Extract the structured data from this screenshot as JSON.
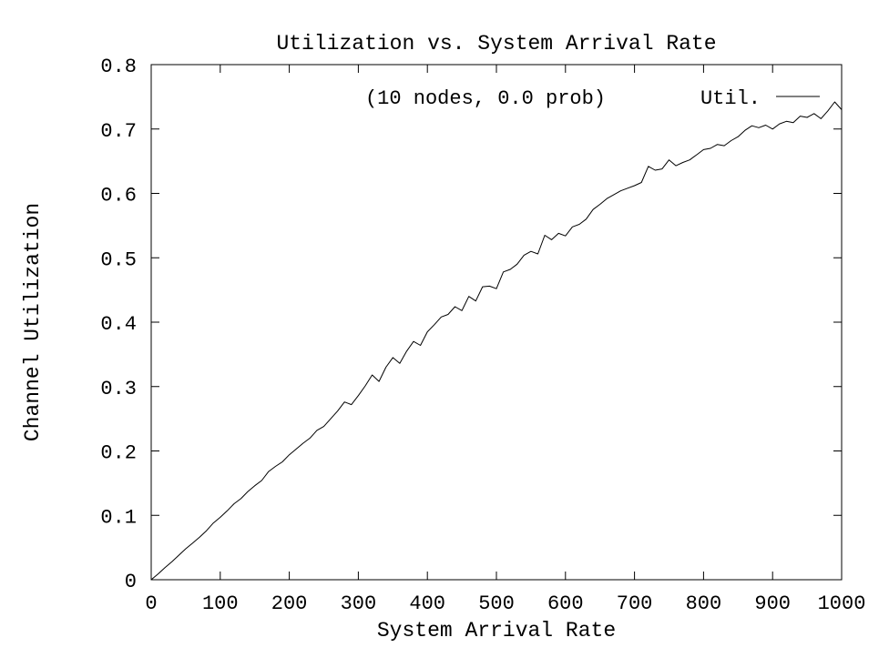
{
  "chart_data": {
    "type": "line",
    "title": "Utilization vs. System Arrival Rate",
    "subtitle": "(10 nodes, 0.0 prob)",
    "xlabel": "System Arrival Rate",
    "ylabel": "Channel Utilization",
    "xlim": [
      0,
      1000
    ],
    "ylim": [
      0,
      0.8
    ],
    "xticks": [
      0,
      100,
      200,
      300,
      400,
      500,
      600,
      700,
      800,
      900,
      1000
    ],
    "yticks": [
      0,
      0.1,
      0.2,
      0.3,
      0.4,
      0.5,
      0.6,
      0.7,
      0.8
    ],
    "ytick_labels": [
      "0",
      "0.1",
      "0.2",
      "0.3",
      "0.4",
      "0.5",
      "0.6",
      "0.7",
      "0.8"
    ],
    "grid": false,
    "legend_position": "top-right",
    "series": [
      {
        "name": "Util.",
        "color": "#000000",
        "x": [
          0,
          10,
          20,
          30,
          40,
          50,
          60,
          70,
          80,
          90,
          100,
          110,
          120,
          130,
          140,
          150,
          160,
          170,
          180,
          190,
          200,
          210,
          220,
          230,
          240,
          250,
          260,
          270,
          280,
          290,
          300,
          310,
          320,
          330,
          340,
          350,
          360,
          370,
          380,
          390,
          400,
          410,
          420,
          430,
          440,
          450,
          460,
          470,
          480,
          490,
          500,
          510,
          520,
          530,
          540,
          550,
          560,
          570,
          580,
          590,
          600,
          610,
          620,
          630,
          640,
          650,
          660,
          670,
          680,
          690,
          700,
          710,
          720,
          730,
          740,
          750,
          760,
          770,
          780,
          790,
          800,
          810,
          820,
          830,
          840,
          850,
          860,
          870,
          880,
          890,
          900,
          910,
          920,
          930,
          940,
          950,
          960,
          970,
          980,
          990,
          1000
        ],
        "values": [
          0,
          0.009,
          0.019,
          0.028,
          0.038,
          0.048,
          0.057,
          0.066,
          0.076,
          0.088,
          0.097,
          0.107,
          0.118,
          0.126,
          0.137,
          0.146,
          0.154,
          0.168,
          0.176,
          0.183,
          0.194,
          0.203,
          0.212,
          0.22,
          0.232,
          0.238,
          0.25,
          0.262,
          0.276,
          0.272,
          0.286,
          0.301,
          0.318,
          0.308,
          0.33,
          0.345,
          0.336,
          0.355,
          0.37,
          0.364,
          0.385,
          0.396,
          0.408,
          0.412,
          0.424,
          0.418,
          0.44,
          0.433,
          0.455,
          0.456,
          0.452,
          0.478,
          0.482,
          0.49,
          0.504,
          0.51,
          0.506,
          0.535,
          0.528,
          0.538,
          0.534,
          0.548,
          0.552,
          0.56,
          0.575,
          0.583,
          0.592,
          0.598,
          0.604,
          0.608,
          0.612,
          0.617,
          0.642,
          0.636,
          0.638,
          0.652,
          0.643,
          0.648,
          0.652,
          0.66,
          0.668,
          0.67,
          0.676,
          0.674,
          0.682,
          0.688,
          0.698,
          0.705,
          0.702,
          0.706,
          0.7,
          0.708,
          0.712,
          0.71,
          0.72,
          0.718,
          0.724,
          0.716,
          0.728,
          0.742,
          0.73
        ]
      }
    ]
  }
}
